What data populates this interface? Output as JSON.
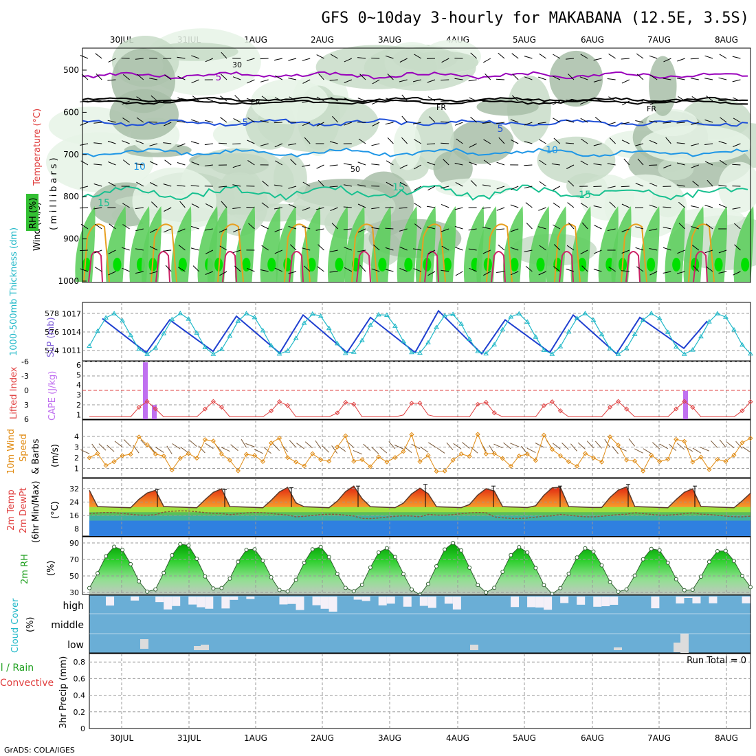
{
  "title": "GFS 0~10day 3-hourly for MAKABANA (12.5E, 3.5S)",
  "footer": "GrADS: COLA/IGES",
  "dates": [
    "30JUL",
    "31JUL",
    "1AUG",
    "2AUG",
    "3AUG",
    "4AUG",
    "5AUG",
    "6AUG",
    "7AUG",
    "8AUG"
  ],
  "colors": {
    "rh_light": "#e6f3e6",
    "rh_mid": "#c8dcc8",
    "rh_dark": "#a8bea8",
    "rh_green": "#5fcf5f",
    "rh_bright": "#00e000",
    "t_minus5": "#9900bb",
    "t_fr": "#000000",
    "t_5": "#1e4fd8",
    "t_10": "#1e96e6",
    "t_15": "#18c090",
    "t_20": "#e8a020",
    "t_25": "#cc2266",
    "slp": "#1f3fd0",
    "thick": "#20b8c8",
    "li": "#e04040",
    "cape": "#c070f0",
    "wind": "#e08a10",
    "cloud_bg": "#6aaed6",
    "cloud_bar": "#f4f0f8"
  },
  "upper": {
    "ylabel_lines": [
      "Wind (m/s)",
      "Temperature (°C)",
      "(millibars)"
    ],
    "rh_label": "RH (%)",
    "pressure_ticks": [
      "500",
      "600",
      "700",
      "800",
      "900",
      "1000"
    ],
    "contour_labels": {
      "minus5": "-5",
      "fr": "FR",
      "five": "5",
      "ten": "10",
      "fifteen": "15",
      "rh30": "30",
      "rh50": "50"
    }
  },
  "panels": {
    "slp": {
      "label_left": "1000-500mb Thickness (dm)",
      "label_right": "SLP (mb)",
      "left_ticks": [
        "578",
        "576",
        "574"
      ],
      "right_ticks": [
        "1017",
        "1014",
        "1011"
      ]
    },
    "cape": {
      "label_li": "Lifted Index",
      "label_cape": "CAPE (J/kg)",
      "li_ticks": [
        "-6",
        "-3",
        "0",
        "3",
        "6"
      ],
      "cape_ticks": [
        "6",
        "5",
        "4",
        "3",
        "2",
        "1"
      ]
    },
    "wind": {
      "label1": "10m Wind",
      "label2": "Speed",
      "label3": "& Barbs",
      "unit": "(m/s)",
      "ticks": [
        "4",
        "3",
        "2",
        "1"
      ]
    },
    "temp": {
      "label1": "2m Temp",
      "label2": "2m DewPt",
      "label3": "(6hr Min/Max)",
      "unit": "(°C)",
      "ticks": [
        "32",
        "24",
        "16",
        "8"
      ]
    },
    "rh": {
      "label": "2m RH",
      "unit": "(%)",
      "ticks": [
        "90",
        "70",
        "50",
        "30"
      ]
    },
    "cloud": {
      "label": "Cloud Cover",
      "unit": "(%)",
      "levels": [
        "high",
        "middle",
        "low"
      ]
    },
    "precip": {
      "label_total": "Total / Rain",
      "label_conv": "Convective",
      "label_axis": "3hr Precip (mm)",
      "run_total": "Run Total = 0",
      "ticks": [
        "0.8",
        "0.6",
        "0.4",
        "0.2",
        "0"
      ]
    }
  },
  "chart_data": [
    {
      "type": "line",
      "title": "1000-500mb Thickness (dm) / SLP (mb)",
      "series": [
        {
          "name": "SLP (mb)",
          "peaks_mb": [
            1016.2,
            1016.0,
            1016.6,
            1016.8,
            1016.4,
            1017.5,
            1016.0,
            1016.8,
            1016.4,
            1015.8
          ],
          "troughs_mb": [
            1010.5,
            1010.6,
            1010.8,
            1010.5,
            1010.6,
            1010.6,
            1010.4,
            1010.6,
            1010.4,
            1011.3
          ]
        },
        {
          "name": "1000-500mb Thickness (dm)",
          "range_dm": [
            573.6,
            578.0
          ]
        }
      ]
    },
    {
      "type": "bar",
      "title": "CAPE (J/kg)",
      "x": [
        "30JUL",
        "30JUL",
        "7AUG"
      ],
      "values": [
        6.0,
        1.5,
        3.0
      ]
    },
    {
      "type": "line",
      "title": "2m Temp / 2m DewPt (°C)",
      "x": [
        "30JUL",
        "31JUL",
        "1AUG",
        "2AUG",
        "3AUG",
        "4AUG",
        "5AUG",
        "6AUG",
        "7AUG",
        "8AUG"
      ],
      "series": [
        {
          "name": "2m Temp max",
          "values": [
            31,
            31,
            32,
            33,
            34,
            33,
            33,
            34,
            33,
            32
          ]
        },
        {
          "name": "2m Temp min",
          "values": [
            20,
            20,
            20,
            20,
            20,
            20,
            20,
            20,
            20,
            20
          ]
        },
        {
          "name": "2m DewPt",
          "values": [
            17,
            18,
            17,
            16,
            15,
            17,
            15,
            16,
            17,
            16
          ]
        }
      ]
    },
    {
      "type": "line",
      "title": "2m RH (%)",
      "x": [
        "30JUL",
        "31JUL",
        "1AUG",
        "2AUG",
        "3AUG",
        "4AUG",
        "5AUG",
        "6AUG",
        "7AUG",
        "8AUG"
      ],
      "series": [
        {
          "name": "2m RH max",
          "values": [
            86,
            90,
            84,
            86,
            84,
            90,
            85,
            84,
            84,
            82
          ]
        },
        {
          "name": "2m RH min",
          "values": [
            30,
            33,
            30,
            31,
            27,
            30,
            28,
            30,
            31,
            34
          ]
        }
      ]
    },
    {
      "type": "bar",
      "title": "3hr Precip (mm)",
      "ylim": [
        0,
        0.9
      ],
      "values": [
        0
      ]
    }
  ]
}
